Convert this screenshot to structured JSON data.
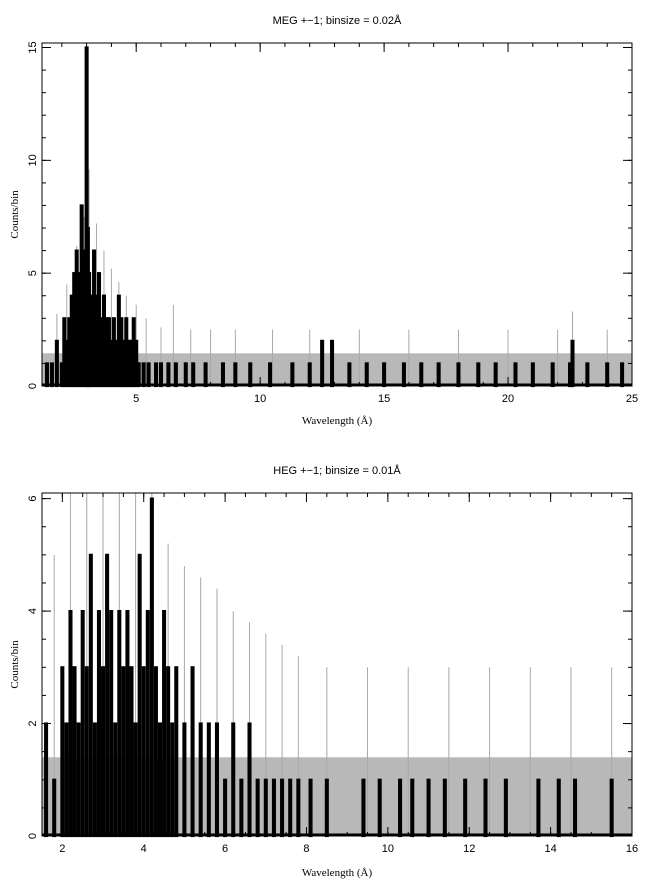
{
  "chart_data": [
    {
      "type": "histogram",
      "title": "MEG +−1; binsize = 0.02Å",
      "xlabel": "Wavelength (Å)",
      "ylabel": "Counts/bin",
      "xlim": [
        1.2,
        25
      ],
      "ylim": [
        0,
        15.2
      ],
      "xticks": [
        5,
        10,
        15,
        20,
        25
      ],
      "yticks": [
        0,
        5,
        10,
        15
      ],
      "grid": false,
      "legend": "none",
      "series": [
        {
          "role": "counts",
          "style": "black-steps",
          "x": [
            1.4,
            1.6,
            1.8,
            2.0,
            2.1,
            2.2,
            2.3,
            2.4,
            2.5,
            2.6,
            2.7,
            2.8,
            2.9,
            3.0,
            3.05,
            3.1,
            3.2,
            3.3,
            3.4,
            3.5,
            3.6,
            3.7,
            3.8,
            3.9,
            4.0,
            4.1,
            4.2,
            4.3,
            4.4,
            4.5,
            4.6,
            4.7,
            4.8,
            4.9,
            5.0,
            5.1,
            5.3,
            5.5,
            5.8,
            6.0,
            6.3,
            6.6,
            7.0,
            7.3,
            7.8,
            8.5,
            9.0,
            9.6,
            10.4,
            11.3,
            12.0,
            12.5,
            12.9,
            13.6,
            14.3,
            15.0,
            15.8,
            16.5,
            17.2,
            18.0,
            18.8,
            19.5,
            20.3,
            21.0,
            21.8,
            22.5,
            22.6,
            23.2,
            24.0,
            24.6
          ],
          "y": [
            1,
            1,
            2,
            1,
            3,
            2,
            3,
            4,
            5,
            6,
            5,
            8,
            6,
            15,
            7,
            5,
            4,
            6,
            4,
            5,
            3,
            4,
            3,
            3,
            2,
            3,
            2,
            4,
            3,
            2,
            3,
            2,
            2,
            3,
            2,
            1,
            1,
            1,
            1,
            1,
            1,
            1,
            1,
            1,
            1,
            1,
            1,
            1,
            1,
            1,
            1,
            2,
            2,
            1,
            1,
            1,
            1,
            1,
            1,
            1,
            1,
            1,
            1,
            1,
            1,
            1,
            2,
            1,
            1,
            1
          ]
        },
        {
          "role": "background band",
          "style": "grey-band",
          "x": [
            1.2,
            25
          ],
          "y": [
            1.45,
            1.45
          ]
        },
        {
          "role": "error lines",
          "style": "grey-thin",
          "x": [
            1.8,
            2.2,
            2.6,
            2.9,
            3.1,
            3.4,
            3.7,
            4.0,
            4.3,
            4.6,
            5.0,
            5.4,
            6.0,
            6.5,
            7.2,
            8.0,
            9.0,
            10.5,
            12.0,
            14.0,
            16.0,
            18.0,
            20.0,
            22.0,
            22.6,
            24.0
          ],
          "y": [
            3.2,
            4.5,
            6.2,
            7.5,
            9.6,
            7.2,
            6.0,
            5.2,
            4.6,
            4.0,
            3.6,
            3.0,
            2.6,
            3.6,
            2.5,
            2.5,
            2.5,
            2.5,
            2.5,
            2.5,
            2.5,
            2.5,
            2.5,
            2.5,
            3.3,
            2.5
          ]
        }
      ]
    },
    {
      "type": "histogram",
      "title": "HEG +−1; binsize = 0.01Å",
      "xlabel": "Wavelength (Å)",
      "ylabel": "Counts/bin",
      "xlim": [
        1.5,
        16
      ],
      "ylim": [
        0,
        6.1
      ],
      "xticks": [
        2,
        4,
        6,
        8,
        10,
        12,
        14,
        16
      ],
      "yticks": [
        0,
        2,
        4,
        6
      ],
      "grid": false,
      "legend": "none",
      "series": [
        {
          "role": "counts",
          "style": "black-steps",
          "x": [
            1.6,
            1.8,
            2.0,
            2.1,
            2.2,
            2.3,
            2.4,
            2.5,
            2.6,
            2.7,
            2.8,
            2.9,
            3.0,
            3.1,
            3.2,
            3.3,
            3.4,
            3.5,
            3.6,
            3.7,
            3.8,
            3.9,
            4.0,
            4.1,
            4.2,
            4.3,
            4.4,
            4.5,
            4.6,
            4.7,
            4.8,
            5.0,
            5.2,
            5.4,
            5.6,
            5.8,
            6.0,
            6.2,
            6.4,
            6.6,
            6.8,
            7.0,
            7.2,
            7.4,
            7.6,
            7.8,
            8.1,
            8.5,
            9.4,
            9.8,
            10.3,
            10.6,
            11.0,
            11.4,
            11.9,
            12.4,
            12.9,
            13.7,
            14.2,
            14.6,
            15.5
          ],
          "y": [
            2,
            1,
            3,
            2,
            4,
            3,
            2,
            4,
            3,
            5,
            2,
            4,
            3,
            5,
            4,
            2,
            4,
            3,
            4,
            3,
            2,
            5,
            3,
            4,
            6,
            3,
            2,
            4,
            3,
            2,
            3,
            2,
            3,
            2,
            2,
            2,
            1,
            2,
            1,
            2,
            1,
            1,
            1,
            1,
            1,
            1,
            1,
            1,
            1,
            1,
            1,
            1,
            1,
            1,
            1,
            1,
            1,
            1,
            1,
            1,
            1
          ]
        },
        {
          "role": "background band",
          "style": "grey-band",
          "x": [
            1.5,
            16
          ],
          "y": [
            1.4,
            1.4
          ]
        },
        {
          "role": "error lines",
          "style": "grey-thin",
          "x": [
            1.8,
            2.2,
            2.6,
            3.0,
            3.4,
            3.8,
            4.2,
            4.6,
            5.0,
            5.4,
            5.8,
            6.2,
            6.6,
            7.0,
            7.4,
            7.8,
            8.5,
            9.5,
            10.5,
            11.5,
            12.5,
            13.5,
            14.5,
            15.5
          ],
          "y": [
            5.0,
            6.1,
            6.1,
            6.1,
            6.1,
            6.1,
            6.1,
            5.2,
            4.8,
            4.6,
            4.4,
            4.0,
            3.8,
            3.6,
            3.4,
            3.2,
            3.0,
            3.0,
            3.0,
            3.0,
            3.0,
            3.0,
            3.0,
            3.0
          ]
        }
      ]
    }
  ]
}
